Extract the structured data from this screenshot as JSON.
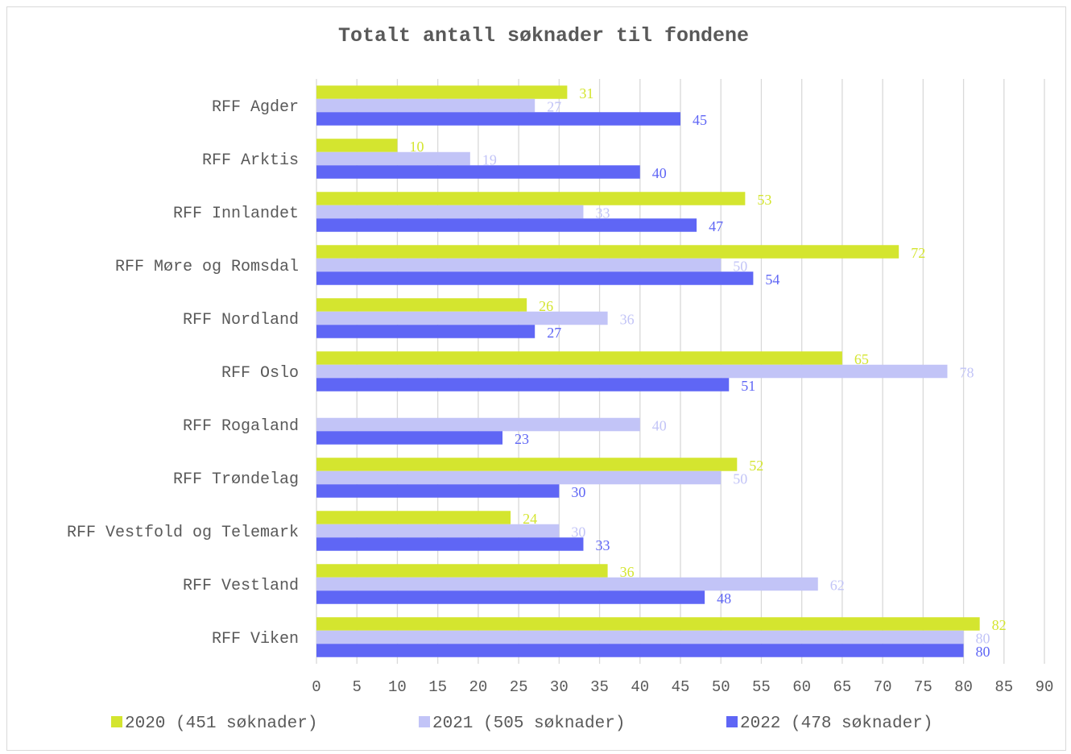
{
  "chart_data": {
    "type": "bar",
    "orientation": "horizontal",
    "title": "Totalt antall søknader til fondene",
    "categories": [
      "RFF Agder",
      "RFF Arktis",
      "RFF Innlandet",
      "RFF Møre og Romsdal",
      "RFF Nordland",
      "RFF Oslo",
      "RFF Rogaland",
      "RFF Trøndelag",
      "RFF Vestfold og Telemark",
      "RFF Vestland",
      "RFF Viken"
    ],
    "series": [
      {
        "name": "2020 (451 søknader)",
        "color": "#d4e52f",
        "values": [
          31,
          10,
          53,
          72,
          26,
          65,
          null,
          52,
          24,
          36,
          82
        ]
      },
      {
        "name": "2021 (505 søknader)",
        "color": "#c2c4f7",
        "values": [
          27,
          19,
          33,
          50,
          36,
          78,
          40,
          50,
          30,
          62,
          80
        ]
      },
      {
        "name": "2022 (478 søknader)",
        "color": "#5f66f5",
        "values": [
          45,
          40,
          47,
          54,
          27,
          51,
          23,
          30,
          33,
          48,
          80
        ]
      }
    ],
    "xlim": [
      0,
      90
    ],
    "xticks": [
      "0",
      "5",
      "10",
      "15",
      "20",
      "25",
      "30",
      "35",
      "40",
      "45",
      "50",
      "55",
      "60",
      "65",
      "70",
      "75",
      "80",
      "85",
      "90"
    ],
    "grid": true,
    "legend": "bottom"
  }
}
